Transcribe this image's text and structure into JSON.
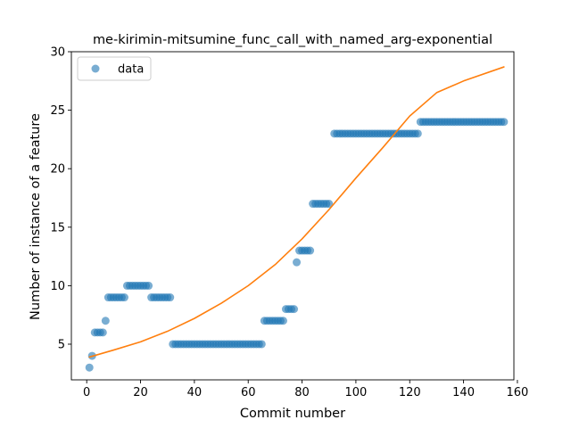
{
  "chart_data": {
    "type": "scatter",
    "title": "me-kirimin-mitsumine_func_call_with_named_arg-exponential",
    "xlabel": "Commit number",
    "ylabel": "Number of instance of a feature",
    "xlim": [
      -5.7,
      158.7
    ],
    "ylim": [
      1.95,
      30.0
    ],
    "xticks": [
      0,
      20,
      40,
      60,
      80,
      100,
      120,
      140,
      160
    ],
    "yticks": [
      5,
      10,
      15,
      20,
      25,
      30
    ],
    "legend": {
      "position": "upper-left",
      "entries": [
        "data"
      ]
    },
    "colors": {
      "data": "#1f77b4",
      "fit": "#ff7f0e"
    },
    "series": [
      {
        "name": "data",
        "kind": "scatter",
        "points": [
          [
            1,
            3
          ],
          [
            2,
            4
          ],
          [
            3,
            6
          ],
          [
            4,
            6
          ],
          [
            5,
            6
          ],
          [
            6,
            6
          ],
          [
            7,
            7
          ],
          [
            8,
            9
          ],
          [
            9,
            9
          ],
          [
            10,
            9
          ],
          [
            11,
            9
          ],
          [
            12,
            9
          ],
          [
            13,
            9
          ],
          [
            14,
            9
          ],
          [
            15,
            10
          ],
          [
            16,
            10
          ],
          [
            17,
            10
          ],
          [
            18,
            10
          ],
          [
            19,
            10
          ],
          [
            20,
            10
          ],
          [
            21,
            10
          ],
          [
            22,
            10
          ],
          [
            23,
            10
          ],
          [
            24,
            9
          ],
          [
            25,
            9
          ],
          [
            26,
            9
          ],
          [
            27,
            9
          ],
          [
            28,
            9
          ],
          [
            29,
            9
          ],
          [
            30,
            9
          ],
          [
            31,
            9
          ],
          [
            32,
            5
          ],
          [
            33,
            5
          ],
          [
            34,
            5
          ],
          [
            35,
            5
          ],
          [
            36,
            5
          ],
          [
            37,
            5
          ],
          [
            38,
            5
          ],
          [
            39,
            5
          ],
          [
            40,
            5
          ],
          [
            41,
            5
          ],
          [
            42,
            5
          ],
          [
            43,
            5
          ],
          [
            44,
            5
          ],
          [
            45,
            5
          ],
          [
            46,
            5
          ],
          [
            47,
            5
          ],
          [
            48,
            5
          ],
          [
            49,
            5
          ],
          [
            50,
            5
          ],
          [
            51,
            5
          ],
          [
            52,
            5
          ],
          [
            53,
            5
          ],
          [
            54,
            5
          ],
          [
            55,
            5
          ],
          [
            56,
            5
          ],
          [
            57,
            5
          ],
          [
            58,
            5
          ],
          [
            59,
            5
          ],
          [
            60,
            5
          ],
          [
            61,
            5
          ],
          [
            62,
            5
          ],
          [
            63,
            5
          ],
          [
            64,
            5
          ],
          [
            65,
            5
          ],
          [
            66,
            7
          ],
          [
            67,
            7
          ],
          [
            68,
            7
          ],
          [
            69,
            7
          ],
          [
            70,
            7
          ],
          [
            71,
            7
          ],
          [
            72,
            7
          ],
          [
            73,
            7
          ],
          [
            74,
            8
          ],
          [
            75,
            8
          ],
          [
            76,
            8
          ],
          [
            77,
            8
          ],
          [
            78,
            12
          ],
          [
            79,
            13
          ],
          [
            80,
            13
          ],
          [
            81,
            13
          ],
          [
            82,
            13
          ],
          [
            83,
            13
          ],
          [
            84,
            17
          ],
          [
            85,
            17
          ],
          [
            86,
            17
          ],
          [
            87,
            17
          ],
          [
            88,
            17
          ],
          [
            89,
            17
          ],
          [
            90,
            17
          ],
          [
            92,
            23
          ],
          [
            93,
            23
          ],
          [
            94,
            23
          ],
          [
            95,
            23
          ],
          [
            96,
            23
          ],
          [
            97,
            23
          ],
          [
            98,
            23
          ],
          [
            99,
            23
          ],
          [
            100,
            23
          ],
          [
            101,
            23
          ],
          [
            102,
            23
          ],
          [
            103,
            23
          ],
          [
            104,
            23
          ],
          [
            105,
            23
          ],
          [
            106,
            23
          ],
          [
            107,
            23
          ],
          [
            108,
            23
          ],
          [
            109,
            23
          ],
          [
            110,
            23
          ],
          [
            111,
            23
          ],
          [
            112,
            23
          ],
          [
            113,
            23
          ],
          [
            114,
            23
          ],
          [
            115,
            23
          ],
          [
            116,
            23
          ],
          [
            117,
            23
          ],
          [
            118,
            23
          ],
          [
            119,
            23
          ],
          [
            120,
            23
          ],
          [
            121,
            23
          ],
          [
            122,
            23
          ],
          [
            123,
            23
          ],
          [
            124,
            24
          ],
          [
            125,
            24
          ],
          [
            126,
            24
          ],
          [
            127,
            24
          ],
          [
            128,
            24
          ],
          [
            129,
            24
          ],
          [
            130,
            24
          ],
          [
            131,
            24
          ],
          [
            132,
            24
          ],
          [
            133,
            24
          ],
          [
            134,
            24
          ],
          [
            135,
            24
          ],
          [
            136,
            24
          ],
          [
            137,
            24
          ],
          [
            138,
            24
          ],
          [
            139,
            24
          ],
          [
            140,
            24
          ],
          [
            141,
            24
          ],
          [
            142,
            24
          ],
          [
            143,
            24
          ],
          [
            144,
            24
          ],
          [
            145,
            24
          ],
          [
            146,
            24
          ],
          [
            147,
            24
          ],
          [
            148,
            24
          ],
          [
            149,
            24
          ],
          [
            150,
            24
          ],
          [
            151,
            24
          ],
          [
            152,
            24
          ],
          [
            153,
            24
          ],
          [
            154,
            24
          ],
          [
            155,
            24
          ]
        ]
      },
      {
        "kind": "line",
        "curve": "exponential",
        "points": [
          [
            1,
            3.9
          ],
          [
            10,
            4.5
          ],
          [
            20,
            5.2
          ],
          [
            30,
            6.1
          ],
          [
            40,
            7.2
          ],
          [
            50,
            8.5
          ],
          [
            60,
            10.0
          ],
          [
            70,
            11.8
          ],
          [
            80,
            14.0
          ],
          [
            90,
            16.5
          ],
          [
            100,
            19.2
          ],
          [
            110,
            21.8
          ],
          [
            120,
            24.5
          ],
          [
            130,
            26.5
          ],
          [
            140,
            27.5
          ],
          [
            155,
            28.7
          ]
        ]
      }
    ]
  }
}
